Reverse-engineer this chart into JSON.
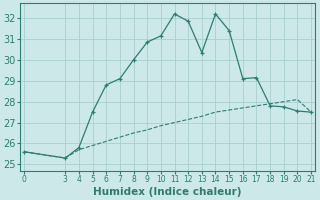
{
  "xlabel": "Humidex (Indice chaleur)",
  "ylabel": "",
  "background_color": "#cce8e8",
  "line_color": "#2e7d72",
  "grid_color": "#aacfcf",
  "xlim": [
    -0.3,
    21.3
  ],
  "ylim": [
    24.7,
    32.7
  ],
  "yticks": [
    25,
    26,
    27,
    28,
    29,
    30,
    31,
    32
  ],
  "xticks": [
    0,
    3,
    4,
    5,
    6,
    7,
    8,
    9,
    10,
    11,
    12,
    13,
    14,
    15,
    16,
    17,
    18,
    19,
    20,
    21
  ],
  "curve1_x": [
    0,
    3,
    4,
    5,
    6,
    7,
    8,
    9,
    10,
    11,
    12,
    13,
    14,
    15,
    16,
    17,
    18,
    19,
    20,
    21
  ],
  "curve1_y": [
    25.6,
    25.3,
    25.8,
    27.5,
    28.8,
    29.1,
    30.0,
    30.85,
    31.15,
    32.2,
    31.85,
    30.35,
    32.2,
    31.4,
    29.1,
    29.15,
    27.8,
    27.75,
    27.55,
    27.5
  ],
  "curve2_x": [
    0,
    3,
    4,
    5,
    6,
    7,
    8,
    9,
    10,
    11,
    12,
    13,
    14,
    15,
    16,
    17,
    18,
    19,
    20,
    21
  ],
  "curve2_y": [
    25.6,
    25.3,
    25.7,
    25.9,
    26.1,
    26.3,
    26.5,
    26.65,
    26.85,
    27.0,
    27.15,
    27.3,
    27.5,
    27.6,
    27.7,
    27.8,
    27.9,
    28.0,
    28.1,
    27.5
  ],
  "font_size": 7.5,
  "tick_font_size": 7
}
